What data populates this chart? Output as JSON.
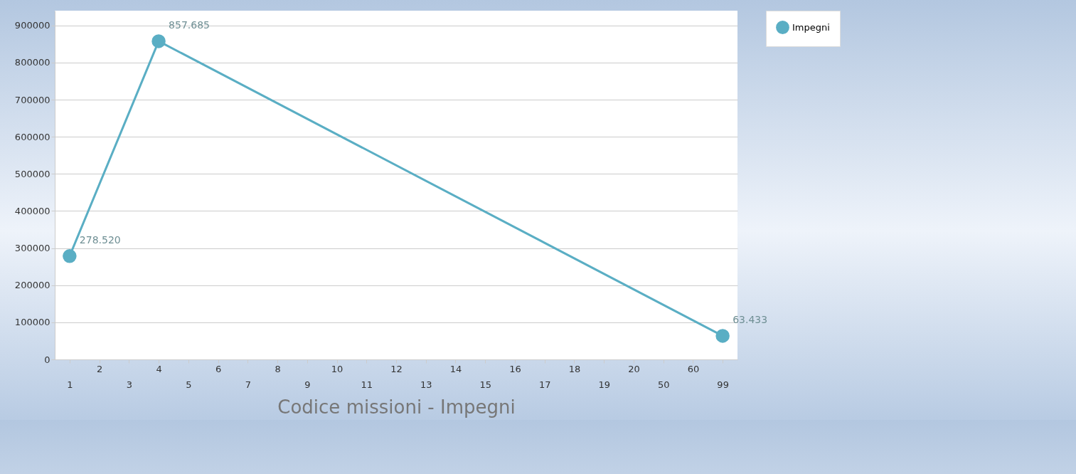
{
  "chart_data": {
    "type": "line",
    "xlabel": "Codice missioni - Impegni",
    "categories": [
      "1",
      "2",
      "3",
      "4",
      "5",
      "6",
      "7",
      "8",
      "9",
      "10",
      "11",
      "12",
      "13",
      "14",
      "15",
      "16",
      "17",
      "18",
      "19",
      "20",
      "50",
      "60",
      "99"
    ],
    "series": [
      {
        "name": "Impegni",
        "color": "#5aaec4",
        "values": [
          278520,
          null,
          null,
          857685,
          null,
          null,
          null,
          null,
          null,
          null,
          null,
          null,
          null,
          null,
          null,
          null,
          null,
          null,
          null,
          null,
          null,
          null,
          63433
        ],
        "value_labels": [
          "278.520",
          null,
          null,
          "857.685",
          null,
          null,
          null,
          null,
          null,
          null,
          null,
          null,
          null,
          null,
          null,
          null,
          null,
          null,
          null,
          null,
          null,
          null,
          "63.433"
        ]
      }
    ],
    "ylim": [
      0,
      940000
    ],
    "yticks": [
      0,
      100000,
      200000,
      300000,
      400000,
      500000,
      600000,
      700000,
      800000,
      900000
    ],
    "grid": "y",
    "legend": "top right",
    "marker": "circle",
    "line_style": "solid"
  }
}
